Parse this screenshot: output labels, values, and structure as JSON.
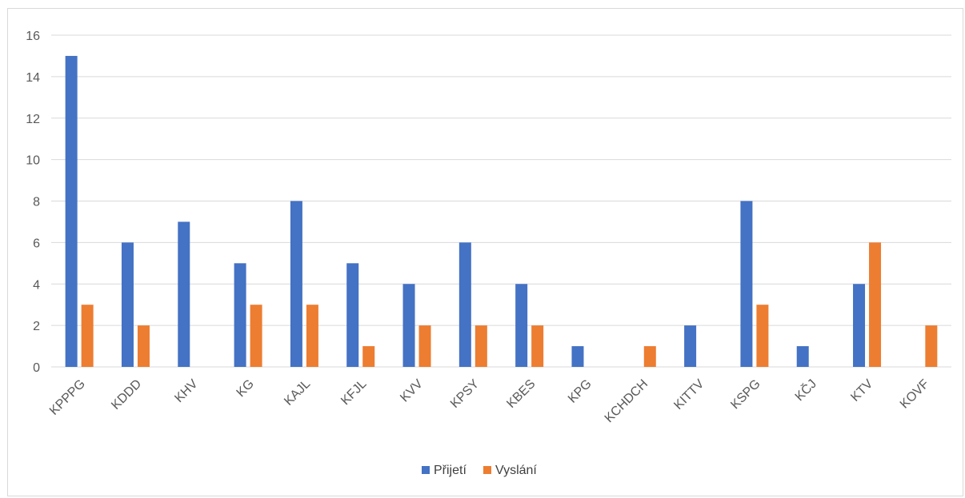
{
  "chart_data": {
    "type": "bar",
    "categories": [
      "KPPPG",
      "KDDD",
      "KHV",
      "KG",
      "KAJL",
      "KFJL",
      "KVV",
      "KPSY",
      "KBES",
      "KPG",
      "KCHDCH",
      "KITTV",
      "KSPG",
      "KČJ",
      "KTV",
      "KOVF"
    ],
    "series": [
      {
        "name": "Přijetí",
        "color": "#4472c4",
        "values": [
          15,
          6,
          7,
          5,
          8,
          5,
          4,
          6,
          4,
          1,
          0,
          2,
          8,
          1,
          4,
          0
        ]
      },
      {
        "name": "Vyslání",
        "color": "#ed7d31",
        "values": [
          3,
          2,
          0,
          3,
          3,
          1,
          2,
          2,
          2,
          0,
          1,
          0,
          3,
          0,
          6,
          2
        ]
      }
    ],
    "ylim": [
      0,
      16
    ],
    "yticks": [
      0,
      2,
      4,
      6,
      8,
      10,
      12,
      14,
      16
    ],
    "grid": true,
    "legend_position": "bottom"
  }
}
